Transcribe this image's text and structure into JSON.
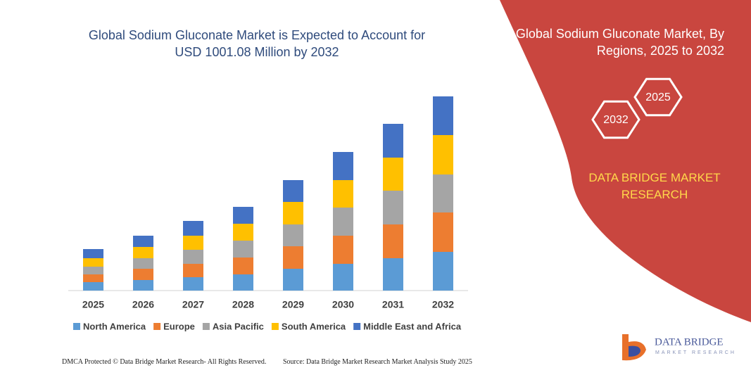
{
  "chart_data": {
    "type": "stacked_bar",
    "title": "Global Sodium Gluconate Market is Expected to Account for USD 1001.08 Million by 2032",
    "categories": [
      "2025",
      "2026",
      "2027",
      "2028",
      "2029",
      "2030",
      "2031",
      "2032"
    ],
    "series": [
      {
        "name": "North America",
        "color": "#5b9bd5",
        "values": [
          12,
          15,
          19,
          23,
          31,
          38,
          46,
          55
        ]
      },
      {
        "name": "Europe",
        "color": "#ed7d31",
        "values": [
          11,
          16,
          19,
          24,
          32,
          40,
          48,
          56
        ]
      },
      {
        "name": "Asia Pacific",
        "color": "#a5a5a5",
        "values": [
          11,
          15,
          20,
          24,
          31,
          40,
          48,
          54
        ]
      },
      {
        "name": "South America",
        "color": "#ffc000",
        "values": [
          12,
          16,
          20,
          24,
          32,
          39,
          47,
          56
        ]
      },
      {
        "name": "Middle East and Africa",
        "color": "#4472c4",
        "values": [
          13,
          16,
          21,
          24,
          31,
          40,
          48,
          55
        ]
      }
    ],
    "ylim": [
      0,
      300
    ],
    "legend": "bottom"
  },
  "panel": {
    "title": "Global Sodium Gluconate Market, By Regions, 2025 to 2032",
    "hexagons": [
      "2025",
      "2032"
    ],
    "brand": "DATA BRIDGE MARKET RESEARCH"
  },
  "logo": {
    "name": "DATA BRIDGE",
    "tagline": "MARKET RESEARCH"
  },
  "footer": {
    "left": "DMCA Protected © Data Bridge Market Research- All Rights Reserved.",
    "right": "Source: Data Bridge Market Research  Market Analysis Study 2025"
  }
}
